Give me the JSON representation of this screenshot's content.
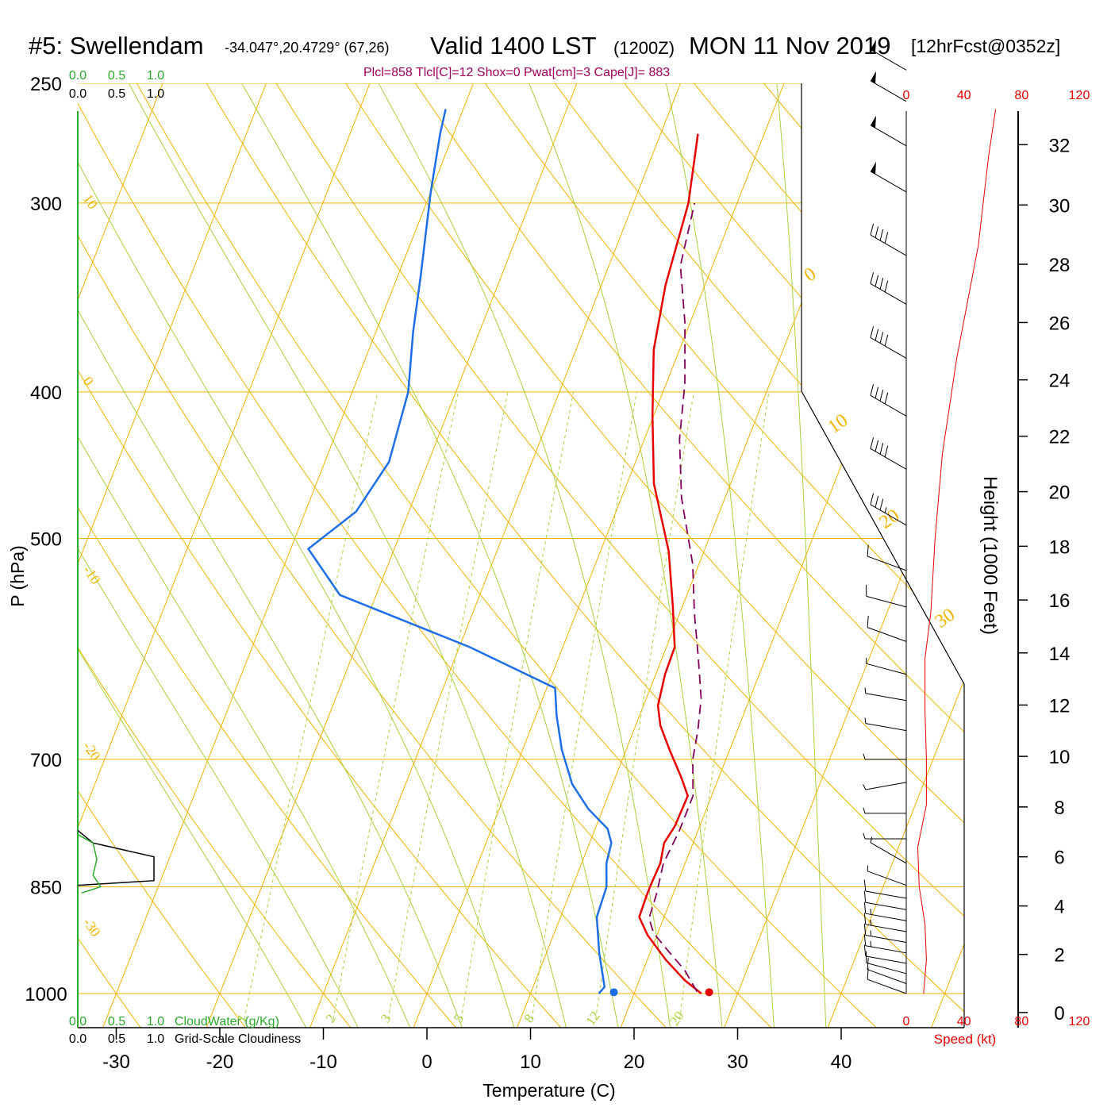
{
  "header": {
    "station": "#5: Swellendam",
    "coords": "-34.047°,20.4729° (67,26)",
    "valid": "Valid 1400 LST",
    "utc": "(1200Z)",
    "date": "MON 11 Nov 2019",
    "forecast": "[12hrFcst@0352z]",
    "stats": "Plcl=858 Tlcl[C]=12 Shox=0 Pwat[cm]=3 Cape[J]= 883"
  },
  "colors": {
    "isobar": "#f0b400",
    "dry_adiabat": "#f0b400",
    "moist_adiabat": "#a8d23c",
    "mixing_ratio": "#a8d23c",
    "isotherm_label": "#f0b400",
    "temperature": "#e80000",
    "dewpoint": "#1e6ee8",
    "parcel": "#80005a",
    "cloud_water": "#2caa2c",
    "cloudiness": "#000000",
    "speed": "#e80000",
    "stats": "#a0005a"
  },
  "chart_data": {
    "type": "line",
    "title": "#5: Swellendam",
    "xlabel": "Temperature (C)",
    "ylabel": "P (hPa)",
    "ylabel_right": "Height (1000 Feet)",
    "x_ticks": [
      "-30",
      "-20",
      "-10",
      "0",
      "10",
      "20",
      "30",
      "40"
    ],
    "x_tick_values": [
      -30,
      -20,
      -10,
      0,
      10,
      20,
      30,
      40
    ],
    "pressure_ticks": [
      "250",
      "300",
      "400",
      "500",
      "700",
      "850",
      "1000"
    ],
    "pressure_tick_values": [
      250,
      300,
      400,
      500,
      700,
      850,
      1000
    ],
    "height_ticks": [
      "0",
      "2",
      "4",
      "6",
      "8",
      "10",
      "12",
      "14",
      "16",
      "18",
      "20",
      "22",
      "24",
      "26",
      "28",
      "30",
      "32"
    ],
    "height_tick_values": [
      0,
      2,
      4,
      6,
      8,
      10,
      12,
      14,
      16,
      18,
      20,
      22,
      24,
      26,
      28,
      30,
      32
    ],
    "isotherm_labels": [
      "10",
      "0",
      "-10",
      "-20",
      "-30"
    ],
    "isotherm_label_values": [
      10,
      0,
      -10,
      -20,
      -30
    ],
    "right_isotherm_labels": [
      "0",
      "10",
      "20",
      "30"
    ],
    "right_isotherm_label_values": [
      0,
      10,
      20,
      30
    ],
    "mixing_ratio_labels": [
      "1",
      "2",
      "3",
      "5",
      "8",
      "12",
      "20"
    ],
    "mixing_ratio_values": [
      1,
      2,
      3,
      5,
      8,
      12,
      20
    ],
    "moist_adiabat_values": [
      -10,
      -5,
      0,
      5,
      10,
      15,
      20,
      25,
      30,
      35,
      40
    ],
    "series": [
      {
        "key": "temperature",
        "points": [
          [
            26.5,
            1000
          ],
          [
            24.4,
            980
          ],
          [
            21.8,
            950
          ],
          [
            19.1,
            915
          ],
          [
            17.6,
            890
          ],
          [
            17.5,
            862
          ],
          [
            17.5,
            847
          ],
          [
            17.6,
            820
          ],
          [
            17.2,
            795
          ],
          [
            17.6,
            775
          ],
          [
            17.7,
            740
          ],
          [
            16.4,
            720
          ],
          [
            14.2,
            690
          ],
          [
            12.4,
            665
          ],
          [
            11.4,
            645
          ],
          [
            10.9,
            615
          ],
          [
            10.8,
            590
          ],
          [
            9.1,
            555
          ],
          [
            6.6,
            510
          ],
          [
            2.6,
            460
          ],
          [
            -0.1,
            415
          ],
          [
            -2.5,
            375
          ],
          [
            -3.8,
            340
          ],
          [
            -4.7,
            300
          ],
          [
            -6.4,
            270
          ]
        ]
      },
      {
        "key": "dewpoint",
        "points": [
          [
            16.6,
            1000
          ],
          [
            16.9,
            990
          ],
          [
            15.1,
            940
          ],
          [
            13.5,
            890
          ],
          [
            13.3,
            850
          ],
          [
            12.4,
            820
          ],
          [
            12.1,
            795
          ],
          [
            11.2,
            778
          ],
          [
            8.6,
            755
          ],
          [
            6.1,
            727
          ],
          [
            3.8,
            690
          ],
          [
            2.0,
            655
          ],
          [
            0.8,
            628
          ],
          [
            -9.0,
            590
          ],
          [
            -23.5,
            545
          ],
          [
            -28.3,
            508
          ],
          [
            -25.1,
            480
          ],
          [
            -23.8,
            445
          ],
          [
            -24.6,
            400
          ],
          [
            -26.4,
            365
          ],
          [
            -27.8,
            335
          ],
          [
            -30.0,
            295
          ],
          [
            -31.3,
            270
          ],
          [
            -31.7,
            260
          ]
        ]
      },
      {
        "key": "parcel",
        "points": [
          [
            26.0,
            997
          ],
          [
            24.0,
            965
          ],
          [
            21.5,
            935
          ],
          [
            19.6,
            912
          ],
          [
            18.6,
            892
          ],
          [
            18.4,
            860
          ],
          [
            17.9,
            820
          ],
          [
            18.2,
            780
          ],
          [
            18.2,
            740
          ],
          [
            16.8,
            700
          ],
          [
            16.2,
            670
          ],
          [
            15.3,
            638
          ],
          [
            13.5,
            600
          ],
          [
            11.4,
            560
          ],
          [
            9.4,
            520
          ],
          [
            5.8,
            470
          ],
          [
            3.4,
            430
          ],
          [
            1.8,
            395
          ],
          [
            -0.5,
            360
          ],
          [
            -3.1,
            330
          ],
          [
            -4.1,
            300
          ]
        ]
      }
    ],
    "surface_temperature": {
      "x": 27.2,
      "p": 998
    },
    "surface_dewpoint": {
      "x": 18.0,
      "p": 998
    },
    "wind_barbs": [
      {
        "p": 1000,
        "dir": 290,
        "speed": 10
      },
      {
        "p": 985,
        "dir": 290,
        "speed": 10
      },
      {
        "p": 970,
        "dir": 285,
        "speed": 10
      },
      {
        "p": 955,
        "dir": 280,
        "speed": 10
      },
      {
        "p": 940,
        "dir": 280,
        "speed": 15
      },
      {
        "p": 925,
        "dir": 280,
        "speed": 15
      },
      {
        "p": 910,
        "dir": 280,
        "speed": 15
      },
      {
        "p": 895,
        "dir": 280,
        "speed": 15
      },
      {
        "p": 880,
        "dir": 280,
        "speed": 10
      },
      {
        "p": 865,
        "dir": 280,
        "speed": 10
      },
      {
        "p": 848,
        "dir": 290,
        "speed": 5
      },
      {
        "p": 820,
        "dir": 300,
        "speed": 5
      },
      {
        "p": 790,
        "dir": 270,
        "speed": 5
      },
      {
        "p": 760,
        "dir": 270,
        "speed": 5
      },
      {
        "p": 725,
        "dir": 260,
        "speed": 5
      },
      {
        "p": 700,
        "dir": 270,
        "speed": 5
      },
      {
        "p": 670,
        "dir": 280,
        "speed": 5
      },
      {
        "p": 640,
        "dir": 280,
        "speed": 5
      },
      {
        "p": 615,
        "dir": 285,
        "speed": 5
      },
      {
        "p": 585,
        "dir": 290,
        "speed": 10
      },
      {
        "p": 555,
        "dir": 285,
        "speed": 10
      },
      {
        "p": 525,
        "dir": 290,
        "speed": 10
      },
      {
        "p": 490,
        "dir": 300,
        "speed": 35
      },
      {
        "p": 450,
        "dir": 300,
        "speed": 40
      },
      {
        "p": 415,
        "dir": 300,
        "speed": 40
      },
      {
        "p": 380,
        "dir": 300,
        "speed": 40
      },
      {
        "p": 350,
        "dir": 300,
        "speed": 40
      },
      {
        "p": 325,
        "dir": 300,
        "speed": 40
      },
      {
        "p": 295,
        "dir": 300,
        "speed": 50
      },
      {
        "p": 275,
        "dir": 300,
        "speed": 50
      },
      {
        "p": 257,
        "dir": 300,
        "speed": 50
      },
      {
        "p": 245,
        "dir": 300,
        "speed": 50
      }
    ],
    "wind_speed_profile": [
      [
        12,
        1000
      ],
      [
        14,
        950
      ],
      [
        13,
        900
      ],
      [
        9,
        850
      ],
      [
        8,
        800
      ],
      [
        14,
        750
      ],
      [
        14,
        700
      ],
      [
        13,
        650
      ],
      [
        13,
        600
      ],
      [
        17,
        560
      ],
      [
        20,
        500
      ],
      [
        25,
        440
      ],
      [
        35,
        380
      ],
      [
        50,
        320
      ],
      [
        57,
        280
      ],
      [
        62,
        260
      ]
    ],
    "speed_ticks": [
      "0",
      "40",
      "80",
      "120"
    ],
    "speed_tick_values": [
      0,
      40,
      80,
      120
    ],
    "speed_label": "Speed (kt)",
    "cloud_scale_ticks": [
      "0.0",
      "0.5",
      "1.0"
    ],
    "cloud_water_label": "CloudWater (g/Kg)",
    "cloudiness_label": "Grid-Scale Cloudiness",
    "cloud_water_profile": [
      [
        0.0,
        785
      ],
      [
        0.2,
        795
      ],
      [
        0.25,
        815
      ],
      [
        0.2,
        835
      ],
      [
        0.3,
        850
      ],
      [
        0.05,
        858
      ]
    ],
    "cloudiness_profile": [
      [
        0.0,
        780
      ],
      [
        0.2,
        795
      ],
      [
        1.0,
        812
      ],
      [
        1.0,
        842
      ],
      [
        0.0,
        848
      ]
    ]
  }
}
